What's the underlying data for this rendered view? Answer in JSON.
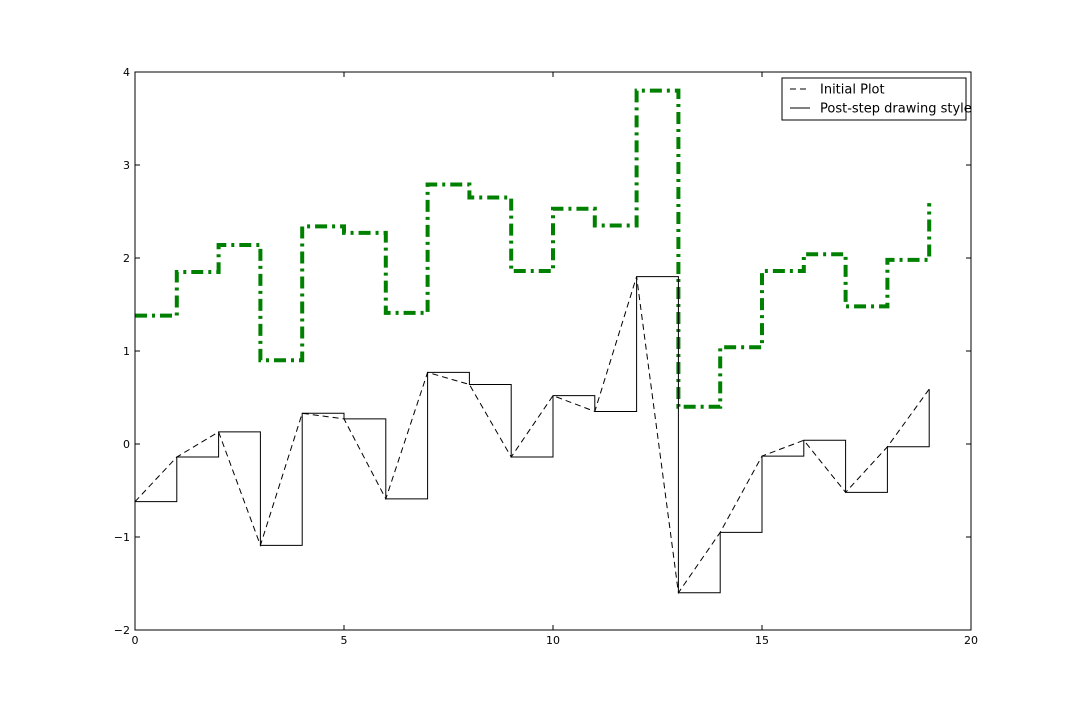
{
  "chart_data": {
    "type": "line",
    "title": "",
    "xlabel": "",
    "ylabel": "",
    "xlim": [
      0,
      20
    ],
    "ylim": [
      -2,
      4
    ],
    "xticks": [
      0,
      5,
      10,
      15,
      20
    ],
    "yticks": [
      -2,
      -1,
      0,
      1,
      2,
      3,
      4
    ],
    "xtick_labels": [
      "0",
      "5",
      "10",
      "15",
      "20"
    ],
    "ytick_labels": [
      "−2",
      "−1",
      "0",
      "1",
      "2",
      "3",
      "4"
    ],
    "grid": false,
    "legend_position": "top-right",
    "x": [
      0,
      1,
      2,
      3,
      4,
      5,
      6,
      7,
      8,
      9,
      10,
      11,
      12,
      13,
      14,
      15,
      16,
      17,
      18,
      19
    ],
    "series": [
      {
        "name": "Initial Plot",
        "style": "dashed",
        "drawstyle": "default",
        "color": "#000000",
        "values": [
          -0.62,
          -0.14,
          0.13,
          -1.09,
          0.33,
          0.27,
          -0.59,
          0.77,
          0.64,
          -0.14,
          0.52,
          0.35,
          1.8,
          -1.6,
          -0.95,
          -0.13,
          0.04,
          -0.52,
          -0.03,
          0.59
        ]
      },
      {
        "name": "Post-step drawing style",
        "style": "solid",
        "drawstyle": "steps-post",
        "color": "#000000",
        "values": [
          -0.62,
          -0.14,
          0.13,
          -1.09,
          0.33,
          0.27,
          -0.59,
          0.77,
          0.64,
          -0.14,
          0.52,
          0.35,
          1.8,
          -1.6,
          -0.95,
          -0.13,
          0.04,
          -0.52,
          -0.03,
          0.59
        ]
      },
      {
        "style": "dash-dot",
        "drawstyle": "steps-post",
        "color": "#008000",
        "values": [
          1.38,
          1.85,
          2.14,
          0.9,
          2.34,
          2.27,
          1.41,
          2.79,
          2.65,
          1.86,
          2.53,
          2.35,
          3.8,
          0.4,
          1.04,
          1.86,
          2.04,
          1.48,
          1.98,
          2.59
        ]
      }
    ]
  }
}
